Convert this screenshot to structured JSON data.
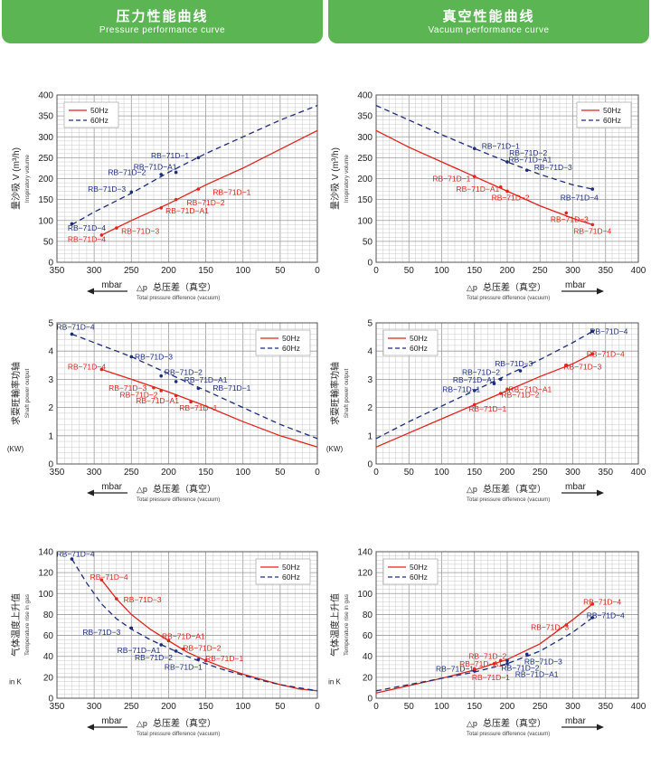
{
  "header": {
    "left_title": "压力性能曲线",
    "left_subtitle": "Pressure performance curve",
    "right_title": "真空性能曲线",
    "right_subtitle": "Vacuum performance curve"
  },
  "colors": {
    "header_green": "#5ab552",
    "series_50hz": "#e0231b",
    "series_60hz": "#1c2c7c",
    "grid": "#c8c8c8"
  },
  "chart_data": [
    {
      "id": "pressure-flow",
      "type": "line",
      "xlim": [
        350,
        0
      ],
      "ylim": [
        0,
        400
      ],
      "xticks": [
        350,
        300,
        250,
        200,
        150,
        100,
        50,
        0
      ],
      "yticks": [
        0,
        50,
        100,
        150,
        200,
        250,
        300,
        350,
        400
      ],
      "ylabel_cn": "量沙吸 V (m³/h)",
      "ylabel_en": "Inspiratory volume",
      "xunit": "mbar",
      "xlabel_prefix": "△p",
      "xlabel_cn": "总压差（真空）",
      "xlabel_en": "Total pressure difference (vacuum)",
      "legend": "top-left",
      "series": [
        {
          "name": "50Hz",
          "style": "solid",
          "x": [
            290,
            250,
            200,
            150,
            100,
            50,
            0
          ],
          "y": [
            65,
            100,
            140,
            185,
            225,
            270,
            315
          ]
        },
        {
          "name": "60Hz",
          "style": "dashed",
          "x": [
            330,
            300,
            250,
            200,
            150,
            100,
            50,
            0
          ],
          "y": [
            90,
            120,
            165,
            215,
            260,
            300,
            340,
            375
          ]
        }
      ],
      "annotations": [
        {
          "label": "RB−71D−1",
          "series": 1,
          "x": 160,
          "y": 250,
          "lx": 198,
          "ly": 255
        },
        {
          "label": "RB−71D−A1",
          "series": 1,
          "x": 190,
          "y": 215,
          "lx": 218,
          "ly": 228
        },
        {
          "label": "RB−71D−2",
          "series": 1,
          "x": 210,
          "y": 210,
          "lx": 256,
          "ly": 215
        },
        {
          "label": "RB−71D−3",
          "series": 1,
          "x": 250,
          "y": 168,
          "lx": 283,
          "ly": 175
        },
        {
          "label": "RB−71D−4",
          "series": 1,
          "x": 330,
          "y": 92,
          "lx": 310,
          "ly": 82
        },
        {
          "label": "RB−71D−1",
          "series": 0,
          "x": 160,
          "y": 175,
          "lx": 115,
          "ly": 168
        },
        {
          "label": "RB−71D−2",
          "series": 0,
          "x": 190,
          "y": 150,
          "lx": 150,
          "ly": 143
        },
        {
          "label": "RB−71D−A1",
          "series": 0,
          "x": 210,
          "y": 130,
          "lx": 175,
          "ly": 123
        },
        {
          "label": "RB−71D−3",
          "series": 0,
          "x": 270,
          "y": 82,
          "lx": 238,
          "ly": 75
        },
        {
          "label": "RB−71D−4",
          "series": 0,
          "x": 290,
          "y": 65,
          "lx": 310,
          "ly": 55
        }
      ]
    },
    {
      "id": "vacuum-flow",
      "type": "line",
      "xlim": [
        0,
        400
      ],
      "ylim": [
        0,
        400
      ],
      "xticks": [
        0,
        50,
        100,
        150,
        200,
        250,
        300,
        350,
        400
      ],
      "yticks": [
        0,
        50,
        100,
        150,
        200,
        250,
        300,
        350,
        400
      ],
      "ylabel_cn": "量沙吸 V (m³/h)",
      "ylabel_en": "Inspiratory volume",
      "xunit": "mbar",
      "xlabel_prefix": "△p",
      "xlabel_cn": "总压差（真空）",
      "xlabel_en": "Total pressure difference (vacuum)",
      "legend": "top-right",
      "series": [
        {
          "name": "50Hz",
          "style": "solid",
          "x": [
            0,
            50,
            100,
            150,
            200,
            250,
            300,
            330
          ],
          "y": [
            315,
            275,
            240,
            205,
            170,
            135,
            105,
            90
          ]
        },
        {
          "name": "60Hz",
          "style": "dashed",
          "x": [
            0,
            50,
            100,
            150,
            200,
            250,
            300,
            330
          ],
          "y": [
            375,
            340,
            305,
            272,
            240,
            210,
            185,
            175
          ]
        }
      ],
      "annotations": [
        {
          "label": "RB−71D−1",
          "series": 1,
          "x": 150,
          "y": 272,
          "lx": 190,
          "ly": 278
        },
        {
          "label": "RB−71D−2",
          "series": 1,
          "x": 200,
          "y": 240,
          "lx": 232,
          "ly": 262
        },
        {
          "label": "RB−71D−A1",
          "series": 1,
          "x": 200,
          "y": 240,
          "lx": 235,
          "ly": 245
        },
        {
          "label": "RB−71D−3",
          "series": 1,
          "x": 230,
          "y": 220,
          "lx": 270,
          "ly": 227
        },
        {
          "label": "RB−71D−4",
          "series": 1,
          "x": 330,
          "y": 175,
          "lx": 310,
          "ly": 155
        },
        {
          "label": "RB−71D−1",
          "series": 0,
          "x": 150,
          "y": 205,
          "lx": 115,
          "ly": 200
        },
        {
          "label": "RB−71D−A1",
          "series": 0,
          "x": 190,
          "y": 180,
          "lx": 155,
          "ly": 175
        },
        {
          "label": "RB−71D−2",
          "series": 0,
          "x": 200,
          "y": 170,
          "lx": 205,
          "ly": 155
        },
        {
          "label": "RB−71D−3",
          "series": 0,
          "x": 290,
          "y": 118,
          "lx": 295,
          "ly": 103
        },
        {
          "label": "RB−71D−4",
          "series": 0,
          "x": 330,
          "y": 90,
          "lx": 330,
          "ly": 75
        }
      ]
    },
    {
      "id": "pressure-power",
      "type": "line",
      "xlim": [
        350,
        0
      ],
      "ylim": [
        0,
        5
      ],
      "xticks": [
        350,
        300,
        250,
        200,
        150,
        100,
        50,
        0
      ],
      "yticks": [
        0,
        1,
        2,
        3,
        4,
        5
      ],
      "ylabel_cn": "求耍旺輸率功轴",
      "ylabel_en": "Shaft power output",
      "ylabel_unit": "(KW)",
      "xunit": "mbar",
      "xlabel_prefix": "△p",
      "xlabel_cn": "总压差（真空）",
      "xlabel_en": "Total pressure difference (vacuum)",
      "legend": "top-right",
      "series": [
        {
          "name": "50Hz",
          "style": "solid",
          "x": [
            290,
            250,
            200,
            150,
            100,
            50,
            0
          ],
          "y": [
            3.35,
            3.0,
            2.55,
            2.05,
            1.5,
            1.0,
            0.6
          ]
        },
        {
          "name": "60Hz",
          "style": "dashed",
          "x": [
            330,
            300,
            250,
            200,
            150,
            100,
            50,
            0
          ],
          "y": [
            4.6,
            4.3,
            3.8,
            3.2,
            2.6,
            2.0,
            1.4,
            0.9
          ]
        }
      ],
      "annotations": [
        {
          "label": "RB−71D−4",
          "series": 1,
          "x": 330,
          "y": 4.6,
          "lx": 325,
          "ly": 4.85
        },
        {
          "label": "RB−71D−3",
          "series": 1,
          "x": 250,
          "y": 3.8,
          "lx": 220,
          "ly": 3.8
        },
        {
          "label": "RB−71D−2",
          "series": 1,
          "x": 210,
          "y": 3.12,
          "lx": 180,
          "ly": 3.25
        },
        {
          "label": "RB−71D−A1",
          "series": 1,
          "x": 190,
          "y": 2.92,
          "lx": 150,
          "ly": 2.98
        },
        {
          "label": "RB−71D−1",
          "series": 1,
          "x": 160,
          "y": 2.68,
          "lx": 115,
          "ly": 2.7
        },
        {
          "label": "RB−71D−4",
          "series": 0,
          "x": 290,
          "y": 3.35,
          "lx": 310,
          "ly": 3.45
        },
        {
          "label": "RB−71D−3",
          "series": 0,
          "x": 220,
          "y": 2.7,
          "lx": 255,
          "ly": 2.7
        },
        {
          "label": "RB−71D−2",
          "series": 0,
          "x": 210,
          "y": 2.6,
          "lx": 240,
          "ly": 2.45
        },
        {
          "label": "RB−71D−A1",
          "series": 0,
          "x": 190,
          "y": 2.42,
          "lx": 215,
          "ly": 2.25
        },
        {
          "label": "RB−71D−1",
          "series": 0,
          "x": 170,
          "y": 2.2,
          "lx": 160,
          "ly": 1.98
        }
      ]
    },
    {
      "id": "vacuum-power",
      "type": "line",
      "xlim": [
        0,
        400
      ],
      "ylim": [
        0,
        5
      ],
      "xticks": [
        0,
        50,
        100,
        150,
        200,
        250,
        300,
        350,
        400
      ],
      "yticks": [
        0,
        1,
        2,
        3,
        4,
        5
      ],
      "ylabel_cn": "求耍旺輸率功轴",
      "ylabel_en": "Shaft power output",
      "ylabel_unit": "(KW)",
      "xunit": "mbar",
      "xlabel_prefix": "△p",
      "xlabel_cn": "总压差（真空）",
      "xlabel_en": "Total pressure difference (vacuum)",
      "legend": "top-left",
      "series": [
        {
          "name": "50Hz",
          "style": "solid",
          "x": [
            0,
            50,
            100,
            150,
            200,
            250,
            300,
            330
          ],
          "y": [
            0.6,
            1.1,
            1.6,
            2.1,
            2.6,
            3.1,
            3.55,
            3.9
          ]
        },
        {
          "name": "60Hz",
          "style": "dashed",
          "x": [
            0,
            50,
            100,
            150,
            200,
            250,
            300,
            330
          ],
          "y": [
            0.9,
            1.5,
            2.05,
            2.6,
            3.15,
            3.7,
            4.3,
            4.7
          ]
        }
      ],
      "annotations": [
        {
          "label": "RB−71D−4",
          "series": 1,
          "x": 330,
          "y": 4.7,
          "lx": 355,
          "ly": 4.7
        },
        {
          "label": "RB−71D−3",
          "series": 1,
          "x": 220,
          "y": 3.3,
          "lx": 210,
          "ly": 3.55
        },
        {
          "label": "RB−71D−2",
          "series": 1,
          "x": 190,
          "y": 3.0,
          "lx": 160,
          "ly": 3.25
        },
        {
          "label": "RB−71D−A1",
          "series": 1,
          "x": 180,
          "y": 2.85,
          "lx": 150,
          "ly": 2.98
        },
        {
          "label": "RB−71D−1",
          "series": 1,
          "x": 150,
          "y": 2.6,
          "lx": 130,
          "ly": 2.65
        },
        {
          "label": "RB−71D−4",
          "series": 0,
          "x": 330,
          "y": 3.9,
          "lx": 350,
          "ly": 3.9
        },
        {
          "label": "RB−71D−3",
          "series": 0,
          "x": 290,
          "y": 3.5,
          "lx": 315,
          "ly": 3.45
        },
        {
          "label": "RB−71D−A1",
          "series": 0,
          "x": 200,
          "y": 2.65,
          "lx": 235,
          "ly": 2.65
        },
        {
          "label": "RB−71D−2",
          "series": 0,
          "x": 190,
          "y": 2.5,
          "lx": 220,
          "ly": 2.45
        },
        {
          "label": "RB−71D−1",
          "series": 0,
          "x": 150,
          "y": 2.1,
          "lx": 170,
          "ly": 1.95
        }
      ]
    },
    {
      "id": "pressure-temp",
      "type": "line",
      "xlim": [
        350,
        0
      ],
      "ylim": [
        0,
        140
      ],
      "xticks": [
        350,
        300,
        250,
        200,
        150,
        100,
        50,
        0
      ],
      "yticks": [
        0,
        20,
        40,
        60,
        80,
        100,
        120,
        140
      ],
      "ylabel_cn": "气体温度上升值",
      "ylabel_en": "Temperature rise in gas",
      "ylabel_unit": "in K",
      "xunit": "mbar",
      "xlabel_prefix": "△p",
      "xlabel_cn": "总压差（真空）",
      "xlabel_en": "Total pressure difference (vacuum)",
      "legend": "top-right",
      "series": [
        {
          "name": "50Hz",
          "style": "solid",
          "x": [
            290,
            270,
            250,
            225,
            200,
            175,
            150,
            125,
            100,
            75,
            50,
            25,
            0
          ],
          "y": [
            113,
            95,
            80,
            66,
            55,
            44,
            36,
            29,
            23,
            18,
            13,
            9,
            7
          ]
        },
        {
          "name": "60Hz",
          "style": "dashed",
          "x": [
            330,
            310,
            290,
            270,
            250,
            225,
            200,
            175,
            150,
            125,
            100,
            75,
            50,
            25,
            0
          ],
          "y": [
            133,
            110,
            90,
            76,
            66,
            56,
            48,
            40,
            33,
            27,
            22,
            17,
            13,
            10,
            7
          ]
        }
      ],
      "annotations": [
        {
          "label": "RB−71D−4",
          "series": 1,
          "x": 330,
          "y": 133,
          "lx": 325,
          "ly": 138
        },
        {
          "label": "RB−71D−3",
          "series": 1,
          "x": 250,
          "y": 67,
          "lx": 290,
          "ly": 63
        },
        {
          "label": "RB−71D−A1",
          "series": 1,
          "x": 210,
          "y": 51,
          "lx": 240,
          "ly": 46
        },
        {
          "label": "RB−71D−2",
          "series": 1,
          "x": 190,
          "y": 45,
          "lx": 220,
          "ly": 39
        },
        {
          "label": "RB−71D−1",
          "series": 1,
          "x": 160,
          "y": 37,
          "lx": 180,
          "ly": 30
        },
        {
          "label": "RB−71D−4",
          "series": 0,
          "x": 290,
          "y": 113,
          "lx": 280,
          "ly": 116
        },
        {
          "label": "RB−71D−3",
          "series": 0,
          "x": 270,
          "y": 95,
          "lx": 235,
          "ly": 94
        },
        {
          "label": "RB−71D−A1",
          "series": 0,
          "x": 200,
          "y": 55,
          "lx": 180,
          "ly": 59
        },
        {
          "label": "RB−71D−2",
          "series": 0,
          "x": 180,
          "y": 47,
          "lx": 155,
          "ly": 48
        },
        {
          "label": "RB−71D−1",
          "series": 0,
          "x": 150,
          "y": 36,
          "lx": 125,
          "ly": 38
        }
      ]
    },
    {
      "id": "vacuum-temp",
      "type": "line",
      "xlim": [
        0,
        400
      ],
      "ylim": [
        0,
        140
      ],
      "xticks": [
        0,
        50,
        100,
        150,
        200,
        250,
        300,
        350,
        400
      ],
      "yticks": [
        0,
        20,
        40,
        60,
        80,
        100,
        120,
        140
      ],
      "ylabel_cn": "气体温度上升值",
      "ylabel_en": "Temperature rise in gas",
      "ylabel_unit": "in K",
      "xunit": "mbar",
      "xlabel_prefix": "△p",
      "xlabel_cn": "总压差（真空）",
      "xlabel_en": "Total pressure difference (vacuum)",
      "legend": "top-left",
      "series": [
        {
          "name": "50Hz",
          "style": "solid",
          "x": [
            0,
            50,
            100,
            150,
            200,
            250,
            300,
            330
          ],
          "y": [
            5,
            12,
            19,
            27,
            37,
            52,
            75,
            90
          ]
        },
        {
          "name": "60Hz",
          "style": "dashed",
          "x": [
            0,
            50,
            100,
            150,
            200,
            250,
            300,
            330
          ],
          "y": [
            7,
            13,
            19,
            25,
            33,
            45,
            63,
            77
          ]
        }
      ],
      "annotations": [
        {
          "label": "RB−71D−4",
          "series": 1,
          "x": 330,
          "y": 77,
          "lx": 350,
          "ly": 79
        },
        {
          "label": "RB−71D−3",
          "series": 1,
          "x": 230,
          "y": 42,
          "lx": 255,
          "ly": 35
        },
        {
          "label": "RB−71D−2",
          "series": 1,
          "x": 200,
          "y": 36,
          "lx": 220,
          "ly": 29
        },
        {
          "label": "RB−71D−A1",
          "series": 1,
          "x": 200,
          "y": 33,
          "lx": 245,
          "ly": 23
        },
        {
          "label": "RB−71D−1",
          "series": 1,
          "x": 150,
          "y": 26,
          "lx": 120,
          "ly": 28
        },
        {
          "label": "RB−71D−4",
          "series": 0,
          "x": 330,
          "y": 90,
          "lx": 345,
          "ly": 92
        },
        {
          "label": "RB−71D−3",
          "series": 0,
          "x": 290,
          "y": 70,
          "lx": 265,
          "ly": 68
        },
        {
          "label": "RB−71D−2",
          "series": 0,
          "x": 190,
          "y": 36,
          "lx": 170,
          "ly": 40
        },
        {
          "label": "RB−71D−A1",
          "series": 0,
          "x": 180,
          "y": 33,
          "lx": 160,
          "ly": 33
        },
        {
          "label": "RB−71D−1",
          "series": 0,
          "x": 150,
          "y": 28,
          "lx": 175,
          "ly": 20
        }
      ]
    }
  ]
}
